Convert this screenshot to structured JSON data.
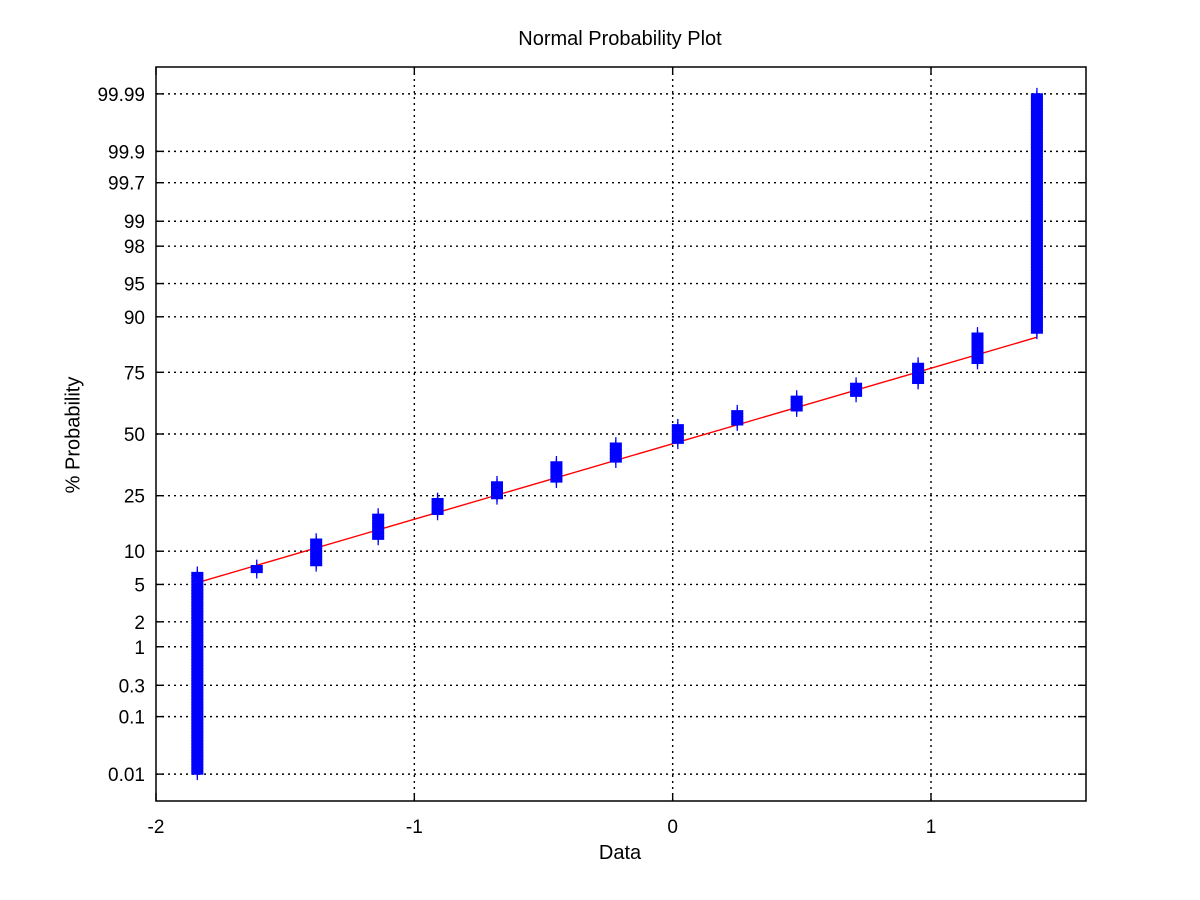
{
  "chart_data": {
    "type": "scatter",
    "title": "Normal Probability Plot",
    "xlabel": "Data",
    "ylabel": "% Probability",
    "xlim": [
      -2,
      1.6
    ],
    "ylim_percent": [
      0.003,
      99.997
    ],
    "y_scale": "normal-probability",
    "grid": true,
    "x_ticks": [
      {
        "value": -2,
        "label": "-2"
      },
      {
        "value": -1,
        "label": "-1"
      },
      {
        "value": 0,
        "label": "0"
      },
      {
        "value": 1,
        "label": "1"
      }
    ],
    "y_ticks": [
      {
        "value": 0.01,
        "label": "0.01"
      },
      {
        "value": 0.1,
        "label": "0.1"
      },
      {
        "value": 0.3,
        "label": "0.3"
      },
      {
        "value": 1,
        "label": "1"
      },
      {
        "value": 2,
        "label": "2"
      },
      {
        "value": 5,
        "label": "5"
      },
      {
        "value": 10,
        "label": "10"
      },
      {
        "value": 25,
        "label": "25"
      },
      {
        "value": 50,
        "label": "50"
      },
      {
        "value": 75,
        "label": "75"
      },
      {
        "value": 90,
        "label": "90"
      },
      {
        "value": 95,
        "label": "95"
      },
      {
        "value": 98,
        "label": "98"
      },
      {
        "value": 99,
        "label": "99"
      },
      {
        "value": 99.7,
        "label": "99.7"
      },
      {
        "value": 99.9,
        "label": "99.9"
      },
      {
        "value": 99.99,
        "label": "99.99"
      }
    ],
    "point_groups": [
      {
        "x": -1.84,
        "p_min": 0.01,
        "p_max": 6.5
      },
      {
        "x": -1.61,
        "p_min": 6.5,
        "p_max": 7.5
      },
      {
        "x": -1.38,
        "p_min": 7.5,
        "p_max": 12.5
      },
      {
        "x": -1.14,
        "p_min": 12.5,
        "p_max": 19
      },
      {
        "x": -0.91,
        "p_min": 19,
        "p_max": 24
      },
      {
        "x": -0.68,
        "p_min": 24,
        "p_max": 30
      },
      {
        "x": -0.45,
        "p_min": 30,
        "p_max": 38
      },
      {
        "x": -0.22,
        "p_min": 38,
        "p_max": 46
      },
      {
        "x": 0.02,
        "p_min": 46,
        "p_max": 54
      },
      {
        "x": 0.25,
        "p_min": 54,
        "p_max": 60
      },
      {
        "x": 0.48,
        "p_min": 60,
        "p_max": 66
      },
      {
        "x": 0.71,
        "p_min": 66,
        "p_max": 71
      },
      {
        "x": 0.95,
        "p_min": 71,
        "p_max": 78
      },
      {
        "x": 1.18,
        "p_min": 78,
        "p_max": 86.5
      },
      {
        "x": 1.41,
        "p_min": 86.5,
        "p_max": 99.99
      }
    ],
    "fit_line": {
      "x": [
        -1.84,
        1.41
      ],
      "p": [
        5.2,
        85.5
      ]
    },
    "colors": {
      "points": "#0000ff",
      "fit_line": "#ff0000",
      "grid": "#000000"
    }
  }
}
